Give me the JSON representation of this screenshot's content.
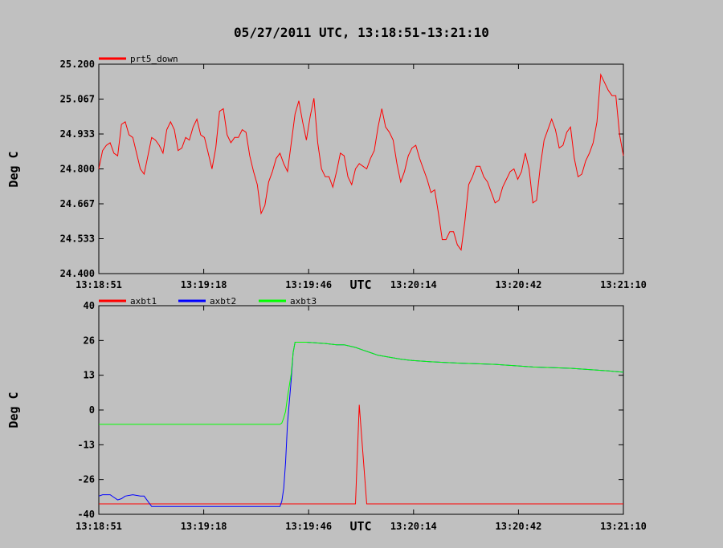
{
  "title": "05/27/2011  UTC, 13:18:51-13:21:10",
  "colors": {
    "background": "#c0c0c0",
    "red": "#ff0000",
    "blue": "#0000ff",
    "green": "#00ff00"
  },
  "chart_data": [
    {
      "type": "line",
      "xlabel": "UTC",
      "ylabel": "Deg C",
      "x_ticks": [
        "13:18:51",
        "13:19:18",
        "13:19:46",
        "13:20:14",
        "13:20:42",
        "13:21:10"
      ],
      "y_ticks": [
        "24.400",
        "24.533",
        "24.667",
        "24.800",
        "24.933",
        "25.067",
        "25.200"
      ],
      "ylim": [
        24.4,
        25.2
      ],
      "x_seconds_range": [
        0,
        139
      ],
      "series": [
        {
          "name": "prt5_down",
          "color": "#ff0000",
          "points": [
            [
              0,
              24.8
            ],
            [
              1,
              24.87
            ],
            [
              2,
              24.89
            ],
            [
              3,
              24.9
            ],
            [
              4,
              24.86
            ],
            [
              5,
              24.85
            ],
            [
              6,
              24.97
            ],
            [
              7,
              24.98
            ],
            [
              8,
              24.93
            ],
            [
              9,
              24.92
            ],
            [
              10,
              24.86
            ],
            [
              11,
              24.8
            ],
            [
              12,
              24.78
            ],
            [
              13,
              24.85
            ],
            [
              14,
              24.92
            ],
            [
              15,
              24.91
            ],
            [
              16,
              24.89
            ],
            [
              17,
              24.86
            ],
            [
              18,
              24.95
            ],
            [
              19,
              24.98
            ],
            [
              20,
              24.95
            ],
            [
              21,
              24.87
            ],
            [
              22,
              24.88
            ],
            [
              23,
              24.92
            ],
            [
              24,
              24.91
            ],
            [
              25,
              24.96
            ],
            [
              26,
              24.99
            ],
            [
              27,
              24.93
            ],
            [
              28,
              24.92
            ],
            [
              29,
              24.86
            ],
            [
              30,
              24.8
            ],
            [
              31,
              24.88
            ],
            [
              32,
              25.02
            ],
            [
              33,
              25.03
            ],
            [
              34,
              24.93
            ],
            [
              35,
              24.9
            ],
            [
              36,
              24.92
            ],
            [
              37,
              24.92
            ],
            [
              38,
              24.95
            ],
            [
              39,
              24.94
            ],
            [
              40,
              24.85
            ],
            [
              41,
              24.79
            ],
            [
              42,
              24.74
            ],
            [
              43,
              24.63
            ],
            [
              44,
              24.66
            ],
            [
              45,
              24.75
            ],
            [
              46,
              24.79
            ],
            [
              47,
              24.84
            ],
            [
              48,
              24.86
            ],
            [
              49,
              24.82
            ],
            [
              50,
              24.79
            ],
            [
              51,
              24.9
            ],
            [
              52,
              25.01
            ],
            [
              53,
              25.06
            ],
            [
              54,
              24.98
            ],
            [
              55,
              24.91
            ],
            [
              56,
              25.0
            ],
            [
              57,
              25.07
            ],
            [
              58,
              24.9
            ],
            [
              59,
              24.8
            ],
            [
              60,
              24.77
            ],
            [
              61,
              24.77
            ],
            [
              62,
              24.73
            ],
            [
              63,
              24.79
            ],
            [
              64,
              24.86
            ],
            [
              65,
              24.85
            ],
            [
              66,
              24.77
            ],
            [
              67,
              24.74
            ],
            [
              68,
              24.8
            ],
            [
              69,
              24.82
            ],
            [
              70,
              24.81
            ],
            [
              71,
              24.8
            ],
            [
              72,
              24.84
            ],
            [
              73,
              24.87
            ],
            [
              74,
              24.96
            ],
            [
              75,
              25.03
            ],
            [
              76,
              24.96
            ],
            [
              77,
              24.94
            ],
            [
              78,
              24.91
            ],
            [
              79,
              24.82
            ],
            [
              80,
              24.75
            ],
            [
              81,
              24.79
            ],
            [
              82,
              24.85
            ],
            [
              83,
              24.88
            ],
            [
              84,
              24.89
            ],
            [
              85,
              24.84
            ],
            [
              86,
              24.8
            ],
            [
              87,
              24.76
            ],
            [
              88,
              24.71
            ],
            [
              89,
              24.72
            ],
            [
              90,
              24.63
            ],
            [
              91,
              24.53
            ],
            [
              92,
              24.53
            ],
            [
              93,
              24.56
            ],
            [
              94,
              24.56
            ],
            [
              95,
              24.51
            ],
            [
              96,
              24.49
            ],
            [
              97,
              24.6
            ],
            [
              98,
              24.74
            ],
            [
              99,
              24.77
            ],
            [
              100,
              24.81
            ],
            [
              101,
              24.81
            ],
            [
              102,
              24.77
            ],
            [
              103,
              24.75
            ],
            [
              104,
              24.71
            ],
            [
              105,
              24.67
            ],
            [
              106,
              24.68
            ],
            [
              107,
              24.73
            ],
            [
              108,
              24.76
            ],
            [
              109,
              24.79
            ],
            [
              110,
              24.8
            ],
            [
              111,
              24.76
            ],
            [
              112,
              24.79
            ],
            [
              113,
              24.86
            ],
            [
              114,
              24.8
            ],
            [
              115,
              24.67
            ],
            [
              116,
              24.68
            ],
            [
              117,
              24.81
            ],
            [
              118,
              24.91
            ],
            [
              119,
              24.95
            ],
            [
              120,
              24.99
            ],
            [
              121,
              24.95
            ],
            [
              122,
              24.88
            ],
            [
              123,
              24.89
            ],
            [
              124,
              24.94
            ],
            [
              125,
              24.96
            ],
            [
              126,
              24.84
            ],
            [
              127,
              24.77
            ],
            [
              128,
              24.78
            ],
            [
              129,
              24.83
            ],
            [
              130,
              24.86
            ],
            [
              131,
              24.9
            ],
            [
              132,
              24.98
            ],
            [
              133,
              25.16
            ],
            [
              134,
              25.13
            ],
            [
              135,
              25.1
            ],
            [
              136,
              25.08
            ],
            [
              137,
              25.08
            ],
            [
              138,
              24.93
            ],
            [
              139,
              24.85
            ]
          ]
        }
      ]
    },
    {
      "type": "line",
      "xlabel": "UTC",
      "ylabel": "Deg C",
      "x_ticks": [
        "13:18:51",
        "13:19:18",
        "13:19:46",
        "13:20:14",
        "13:20:42",
        "13:21:10"
      ],
      "y_ticks": [
        "-40",
        "-26",
        "-13",
        "0",
        "13",
        "26",
        "40"
      ],
      "ylim": [
        -40,
        40
      ],
      "x_seconds_range": [
        0,
        139
      ],
      "series": [
        {
          "name": "axbt1",
          "color": "#ff0000",
          "points": [
            [
              0,
              -36
            ],
            [
              66,
              -36
            ],
            [
              68,
              -36
            ],
            [
              69,
              2
            ],
            [
              71,
              -36
            ],
            [
              139,
              -36
            ]
          ]
        },
        {
          "name": "axbt2",
          "color": "#0000ff",
          "points": [
            [
              0,
              -33
            ],
            [
              1,
              -32.5
            ],
            [
              3,
              -32.5
            ],
            [
              4,
              -33.5
            ],
            [
              5,
              -34.5
            ],
            [
              6,
              -34
            ],
            [
              7,
              -33
            ],
            [
              9,
              -32.5
            ],
            [
              11,
              -33
            ],
            [
              12,
              -33
            ],
            [
              13,
              -35
            ],
            [
              14,
              -37
            ],
            [
              20,
              -37
            ],
            [
              48,
              -37
            ],
            [
              48.5,
              -35
            ],
            [
              49,
              -30
            ],
            [
              49.5,
              -20
            ],
            [
              50,
              -5
            ],
            [
              51,
              12
            ],
            [
              51.5,
              22
            ],
            [
              52,
              26
            ],
            [
              55,
              26
            ],
            [
              60,
              25.5
            ],
            [
              63,
              25
            ],
            [
              65,
              25
            ],
            [
              68,
              24
            ],
            [
              70,
              23
            ],
            [
              72,
              22
            ],
            [
              74,
              21
            ],
            [
              76,
              20.5
            ],
            [
              78,
              20
            ],
            [
              80,
              19.5
            ],
            [
              83,
              19
            ],
            [
              88,
              18.5
            ],
            [
              95,
              18
            ],
            [
              105,
              17.5
            ],
            [
              115,
              16.5
            ],
            [
              125,
              16
            ],
            [
              135,
              15
            ],
            [
              139,
              14.5
            ]
          ]
        },
        {
          "name": "axbt3",
          "color": "#00ff00",
          "points": [
            [
              0,
              -5.5
            ],
            [
              48,
              -5.5
            ],
            [
              48.5,
              -5
            ],
            [
              49,
              -3
            ],
            [
              49.5,
              -0.5
            ],
            [
              50,
              5
            ],
            [
              51,
              14
            ],
            [
              51.5,
              22
            ],
            [
              52,
              26
            ],
            [
              55,
              26
            ],
            [
              60,
              25.5
            ],
            [
              63,
              25
            ],
            [
              65,
              25
            ],
            [
              68,
              24
            ],
            [
              70,
              23
            ],
            [
              72,
              22
            ],
            [
              74,
              21
            ],
            [
              76,
              20.5
            ],
            [
              78,
              20
            ],
            [
              80,
              19.5
            ],
            [
              83,
              19
            ],
            [
              88,
              18.5
            ],
            [
              95,
              18
            ],
            [
              105,
              17.5
            ],
            [
              115,
              16.5
            ],
            [
              125,
              16
            ],
            [
              135,
              15
            ],
            [
              139,
              14.5
            ]
          ]
        }
      ]
    }
  ]
}
